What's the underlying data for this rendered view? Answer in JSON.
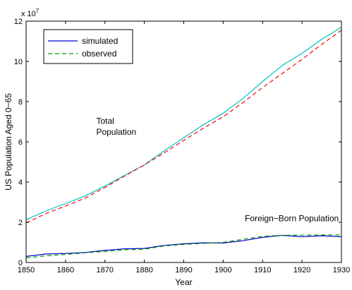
{
  "chart_data": {
    "type": "line",
    "title": "",
    "xlabel": "Year",
    "ylabel": "US Population Aged 0−65",
    "y_exponent_label": "x 10",
    "y_exponent_power": "7",
    "xlim": [
      1850,
      1930
    ],
    "ylim": [
      0,
      12
    ],
    "y_scale": 10000000,
    "x_ticks": [
      1850,
      1860,
      1870,
      1880,
      1890,
      1900,
      1910,
      1920,
      1930
    ],
    "x_tick_labels": [
      "1850",
      "1860",
      "1870",
      "1880",
      "1890",
      "1900",
      "1910",
      "1920",
      "1930"
    ],
    "y_ticks": [
      0,
      2,
      4,
      6,
      8,
      10,
      12
    ],
    "y_tick_labels": [
      "0",
      "2",
      "4",
      "6",
      "8",
      "10",
      "12"
    ],
    "grid": false,
    "legend_position": "top-left",
    "legend": [
      {
        "label": "simulated",
        "color": "#0000cc",
        "dash": "solid"
      },
      {
        "label": "observed",
        "color": "#009900",
        "dash": "dashed"
      }
    ],
    "annotations": [
      {
        "text": "Total",
        "x": 1867.8,
        "y": 6.9
      },
      {
        "text": "Population",
        "x": 1867.8,
        "y": 6.35
      },
      {
        "text": "Foreign−Born Population",
        "x": 1905.5,
        "y": 2.05
      }
    ],
    "x": [
      1850,
      1855,
      1860,
      1865,
      1870,
      1875,
      1880,
      1885,
      1890,
      1895,
      1900,
      1905,
      1910,
      1915,
      1920,
      1925,
      1930
    ],
    "series": [
      {
        "group": "total",
        "role": "simulated",
        "color": "#00bfbf",
        "dash": "solid",
        "values": [
          2.12,
          2.56,
          2.93,
          3.31,
          3.8,
          4.33,
          4.85,
          5.55,
          6.2,
          6.85,
          7.42,
          8.15,
          9.0,
          9.8,
          10.4,
          11.1,
          11.7
        ]
      },
      {
        "group": "total",
        "role": "observed",
        "color": "#ff0000",
        "dash": "dashed",
        "values": [
          1.97,
          2.43,
          2.81,
          3.2,
          3.73,
          4.3,
          4.85,
          5.45,
          6.07,
          6.68,
          7.25,
          7.95,
          8.7,
          9.4,
          10.1,
          10.85,
          11.55
        ]
      },
      {
        "group": "foreign-born",
        "role": "simulated",
        "color": "#0000cc",
        "dash": "solid",
        "values": [
          0.3,
          0.42,
          0.45,
          0.5,
          0.6,
          0.68,
          0.7,
          0.85,
          0.93,
          0.98,
          0.97,
          1.08,
          1.25,
          1.35,
          1.28,
          1.33,
          1.28
        ]
      },
      {
        "group": "foreign-born",
        "role": "observed",
        "color": "#009900",
        "dash": "dashed",
        "values": [
          0.23,
          0.33,
          0.4,
          0.48,
          0.55,
          0.63,
          0.66,
          0.82,
          0.9,
          0.95,
          1.0,
          1.15,
          1.3,
          1.35,
          1.36,
          1.37,
          1.38
        ]
      }
    ]
  }
}
